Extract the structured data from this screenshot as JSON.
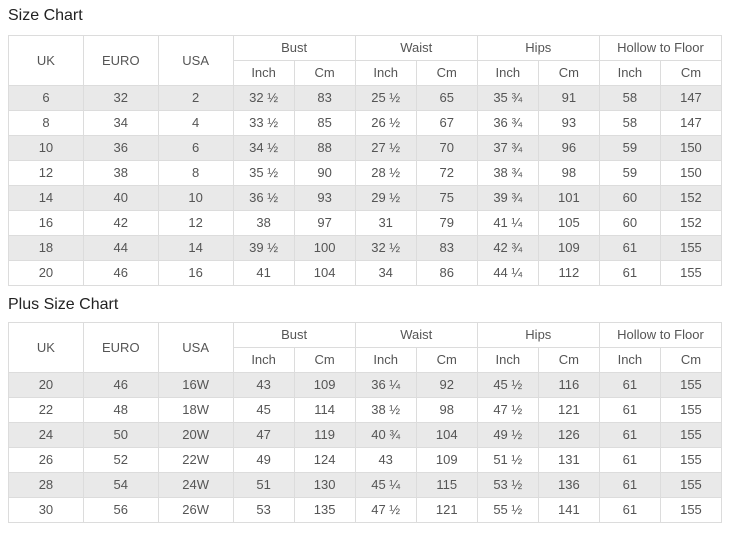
{
  "colors": {
    "stripe": "#e9e9e9",
    "border": "#dcdcdc",
    "text": "#555555",
    "title": "#222222",
    "header_bg": "#ffffff",
    "page_bg": "#ffffff"
  },
  "tables": [
    {
      "title": "Size Chart",
      "columns": {
        "uk": "UK",
        "euro": "EURO",
        "usa": "USA",
        "groups": [
          "Bust",
          "Waist",
          "Hips",
          "Hollow to Floor"
        ],
        "sub_columns": [
          "Inch",
          "Cm"
        ]
      },
      "rows": [
        [
          "6",
          "32",
          "2",
          "32 ½",
          "83",
          "25 ½",
          "65",
          "35 ¾",
          "91",
          "58",
          "147"
        ],
        [
          "8",
          "34",
          "4",
          "33 ½",
          "85",
          "26 ½",
          "67",
          "36 ¾",
          "93",
          "58",
          "147"
        ],
        [
          "10",
          "36",
          "6",
          "34 ½",
          "88",
          "27 ½",
          "70",
          "37 ¾",
          "96",
          "59",
          "150"
        ],
        [
          "12",
          "38",
          "8",
          "35 ½",
          "90",
          "28 ½",
          "72",
          "38 ¾",
          "98",
          "59",
          "150"
        ],
        [
          "14",
          "40",
          "10",
          "36 ½",
          "93",
          "29 ½",
          "75",
          "39 ¾",
          "101",
          "60",
          "152"
        ],
        [
          "16",
          "42",
          "12",
          "38",
          "97",
          "31",
          "79",
          "41 ¼",
          "105",
          "60",
          "152"
        ],
        [
          "18",
          "44",
          "14",
          "39 ½",
          "100",
          "32 ½",
          "83",
          "42 ¾",
          "109",
          "61",
          "155"
        ],
        [
          "20",
          "46",
          "16",
          "41",
          "104",
          "34",
          "86",
          "44 ¼",
          "112",
          "61",
          "155"
        ]
      ]
    },
    {
      "title": "Plus Size Chart",
      "columns": {
        "uk": "UK",
        "euro": "EURO",
        "usa": "USA",
        "groups": [
          "Bust",
          "Waist",
          "Hips",
          "Hollow to Floor"
        ],
        "sub_columns": [
          "Inch",
          "Cm"
        ]
      },
      "rows": [
        [
          "20",
          "46",
          "16W",
          "43",
          "109",
          "36 ¼",
          "92",
          "45 ½",
          "116",
          "61",
          "155"
        ],
        [
          "22",
          "48",
          "18W",
          "45",
          "114",
          "38 ½",
          "98",
          "47 ½",
          "121",
          "61",
          "155"
        ],
        [
          "24",
          "50",
          "20W",
          "47",
          "119",
          "40 ¾",
          "104",
          "49 ½",
          "126",
          "61",
          "155"
        ],
        [
          "26",
          "52",
          "22W",
          "49",
          "124",
          "43",
          "109",
          "51 ½",
          "131",
          "61",
          "155"
        ],
        [
          "28",
          "54",
          "24W",
          "51",
          "130",
          "45 ¼",
          "115",
          "53 ½",
          "136",
          "61",
          "155"
        ],
        [
          "30",
          "56",
          "26W",
          "53",
          "135",
          "47 ½",
          "121",
          "55 ½",
          "141",
          "61",
          "155"
        ]
      ]
    }
  ]
}
